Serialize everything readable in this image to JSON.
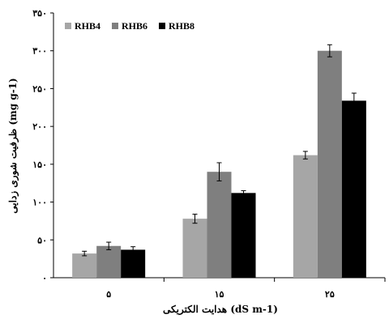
{
  "chart_data": {
    "type": "bar",
    "categories": [
      "۵",
      "۱۵",
      "۲۵"
    ],
    "series": [
      {
        "name": "RHB4",
        "color": "#a6a6a6",
        "values": [
          32,
          78,
          162
        ],
        "errors": [
          3,
          6,
          5
        ]
      },
      {
        "name": "RHB6",
        "color": "#7f7f7f",
        "values": [
          42,
          140,
          300
        ],
        "errors": [
          5,
          12,
          8
        ]
      },
      {
        "name": "RHB8",
        "color": "#000000",
        "values": [
          37,
          112,
          234
        ],
        "errors": [
          4,
          3,
          10
        ]
      }
    ],
    "ylim": [
      0,
      350
    ],
    "yticks": [
      0,
      50,
      100,
      150,
      200,
      250,
      300,
      350
    ],
    "ytick_labels": [
      "۰",
      "۵۰",
      "۱۰۰",
      "۱۵۰",
      "۲۰۰",
      "۲۵۰",
      "۳۰۰",
      "۳۵۰"
    ],
    "xlabel": "هدایت الکتریکی (dS m-1)",
    "ylabel": "ظرفیت شوری زدایی (mg g-1)",
    "legend_position": "top-left",
    "grid": false
  }
}
